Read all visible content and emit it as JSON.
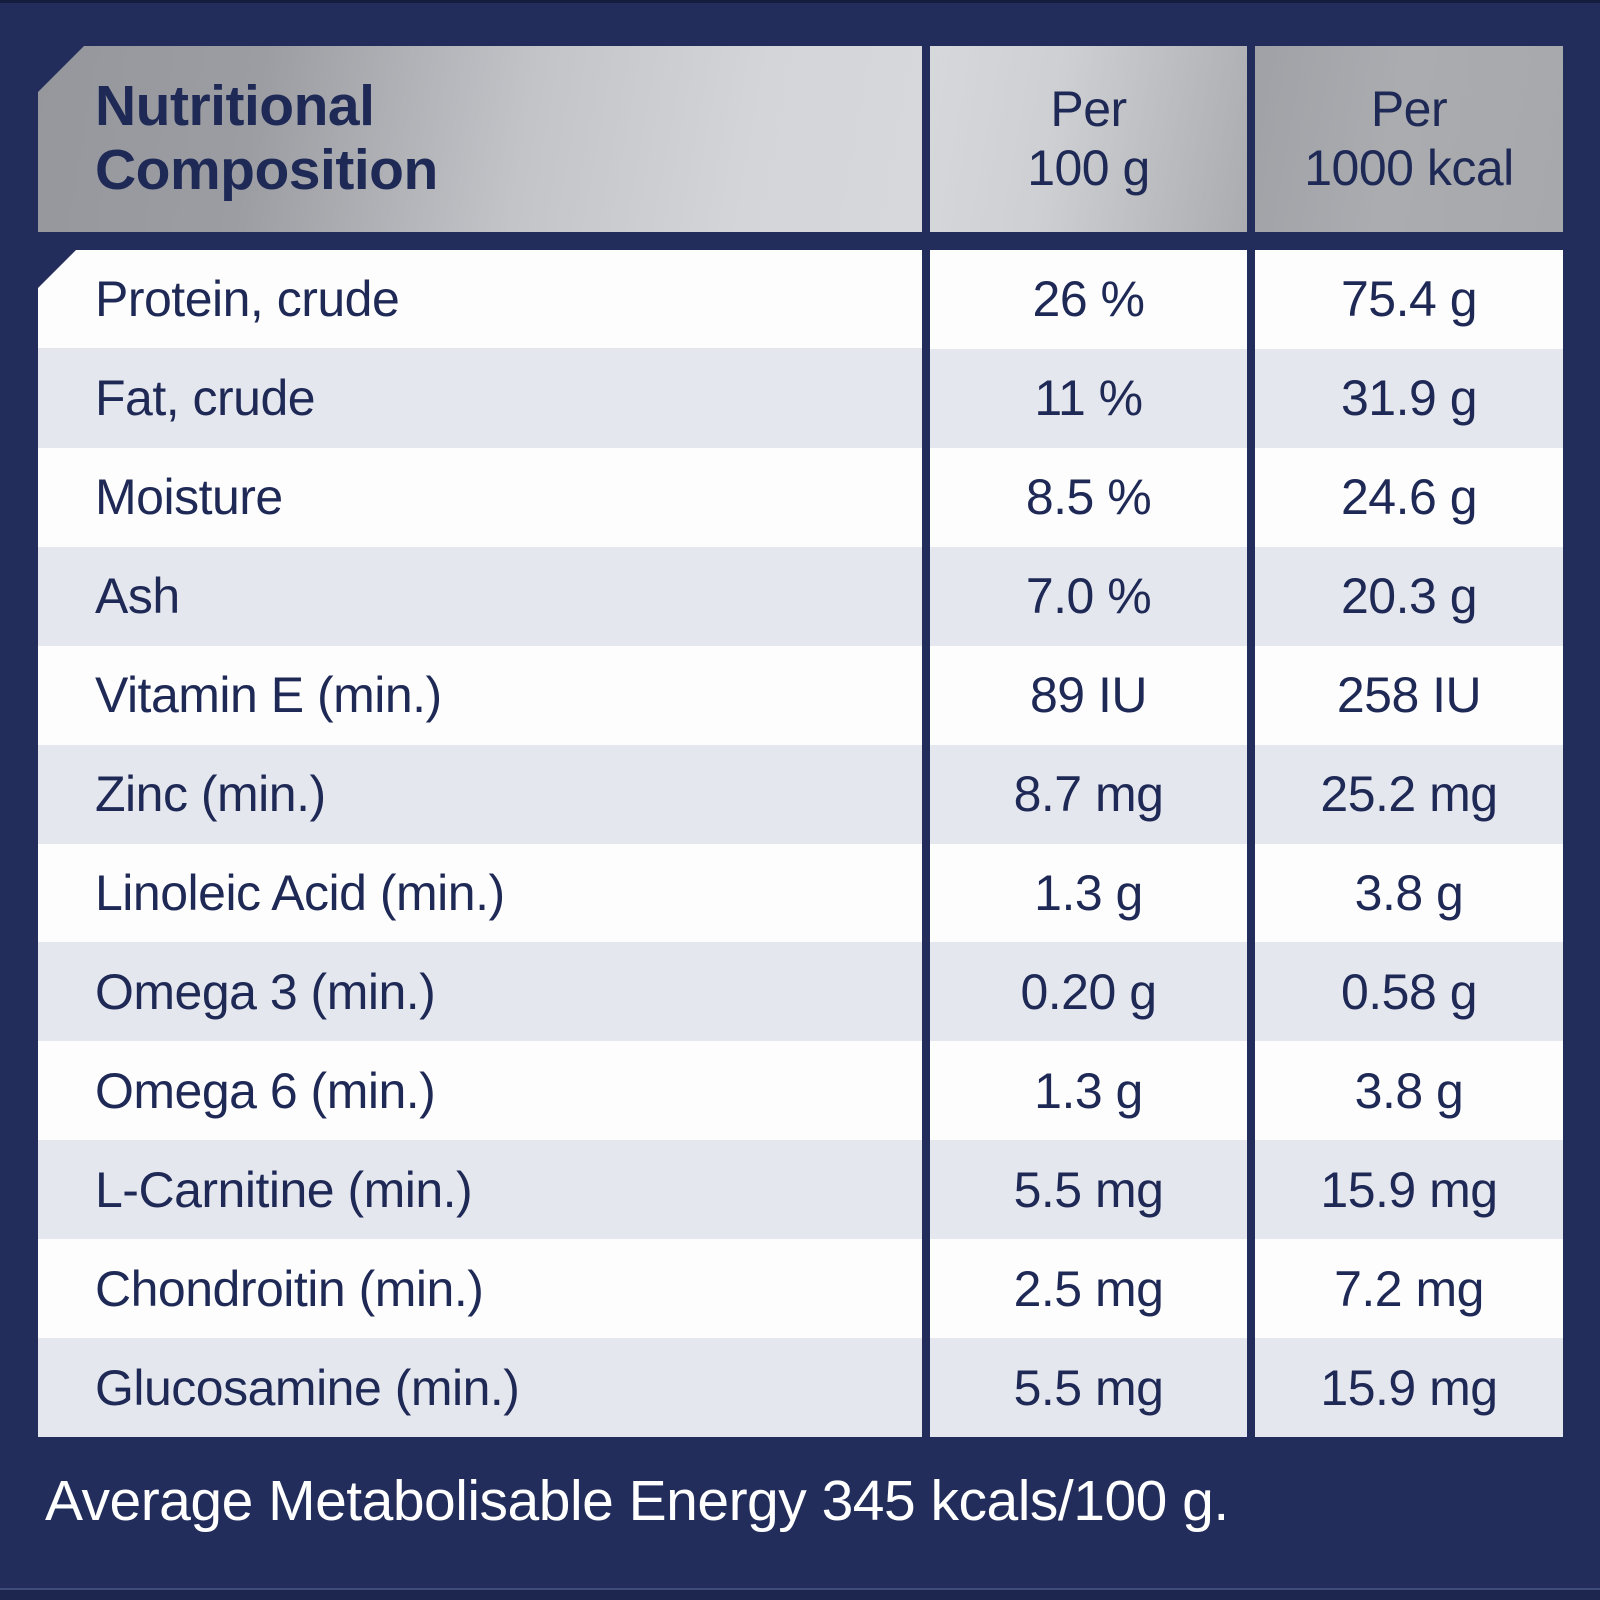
{
  "colors": {
    "background_navy": "#232d5b",
    "text_navy": "#1f2956",
    "row_white": "#fdfdfe",
    "row_alt_gray": "#e5e7ee",
    "header_silver_dark": "#97999e",
    "header_silver_light": "#d6d8dc",
    "footer_text": "#ffffff"
  },
  "header": {
    "title_lines": [
      "Nutritional",
      "Composition"
    ],
    "columns": [
      {
        "line1": "Per",
        "line2": "100 g"
      },
      {
        "line1": "Per",
        "line2": "1000 kcal"
      }
    ]
  },
  "footer": {
    "text": "Average Metabolisable Energy 345 kcals/100 g."
  },
  "chart_data": {
    "type": "table",
    "title": "Nutritional Composition",
    "columns": [
      "",
      "Per 100 g",
      "Per 1000 kcal"
    ],
    "rows": [
      [
        "Protein, crude",
        "26 %",
        "75.4 g"
      ],
      [
        "Fat, crude",
        "11 %",
        "31.9 g"
      ],
      [
        "Moisture",
        "8.5 %",
        "24.6 g"
      ],
      [
        "Ash",
        "7.0 %",
        "20.3 g"
      ],
      [
        "Vitamin E (min.)",
        "89 IU",
        "258 IU"
      ],
      [
        "Zinc (min.)",
        "8.7 mg",
        "25.2 mg"
      ],
      [
        "Linoleic Acid (min.)",
        "1.3 g",
        "3.8 g"
      ],
      [
        "Omega 3 (min.)",
        "0.20 g",
        "0.58 g"
      ],
      [
        "Omega 6 (min.)",
        "1.3 g",
        "3.8 g"
      ],
      [
        "L-Carnitine (min.)",
        "5.5 mg",
        "15.9 mg"
      ],
      [
        "Chondroitin (min.)",
        "2.5 mg",
        "7.2 mg"
      ],
      [
        "Glucosamine (min.)",
        "5.5 mg",
        "15.9 mg"
      ]
    ],
    "footnote": "Average Metabolisable Energy 345 kcals/100 g."
  }
}
